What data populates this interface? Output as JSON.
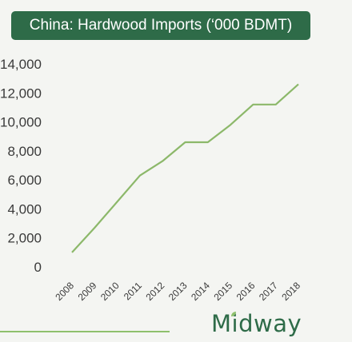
{
  "chart_data": {
    "type": "line",
    "title": "China: Hardwood Imports (‘000 BDMT)",
    "xlabel": "",
    "ylabel": "",
    "x": [
      "2008",
      "2009",
      "2010",
      "2011",
      "2012",
      "2013",
      "2014",
      "2015",
      "2016",
      "2017",
      "2018"
    ],
    "series": [
      {
        "values": [
          1000,
          2700,
          4500,
          6300,
          7300,
          8600,
          8600,
          9800,
          11200,
          11200,
          12600
        ]
      }
    ],
    "yticks": [
      "14,000",
      "12,000",
      "10,000",
      "8,000",
      "6,000",
      "4,000",
      "2,000",
      "0"
    ],
    "ylim": [
      0,
      14000
    ],
    "grid": false,
    "line_color": "#8cb86a"
  },
  "brand": {
    "logo_text": "Midway",
    "color": "#2e6b48",
    "accent": "#8ec06c"
  }
}
